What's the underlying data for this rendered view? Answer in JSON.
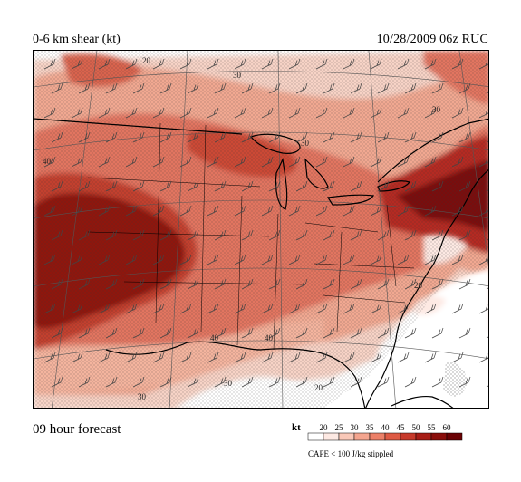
{
  "header": {
    "variable_title": "0-6 km shear (kt)",
    "valid_time": "10/28/2009  06z  RUC"
  },
  "footer": {
    "forecast_label": "09 hour forecast"
  },
  "legend": {
    "unit": "kt",
    "ticks": [
      "20",
      "25",
      "30",
      "35",
      "40",
      "45",
      "50",
      "55",
      "60"
    ],
    "colors": [
      "#fde9e3",
      "#f9c8b8",
      "#f4a58f",
      "#ec8068",
      "#de5a44",
      "#c73a2b",
      "#a81e17",
      "#8a0e0b",
      "#6b0305"
    ],
    "note": "CAPE < 100 J/kg stippled"
  },
  "map": {
    "contour_labels": [
      "20",
      "30",
      "40",
      "30",
      "40",
      "30",
      "20",
      "30",
      "40",
      "30",
      "20"
    ],
    "overlay": "wind barbs",
    "stipple": "CAPE < 100 J/kg"
  }
}
